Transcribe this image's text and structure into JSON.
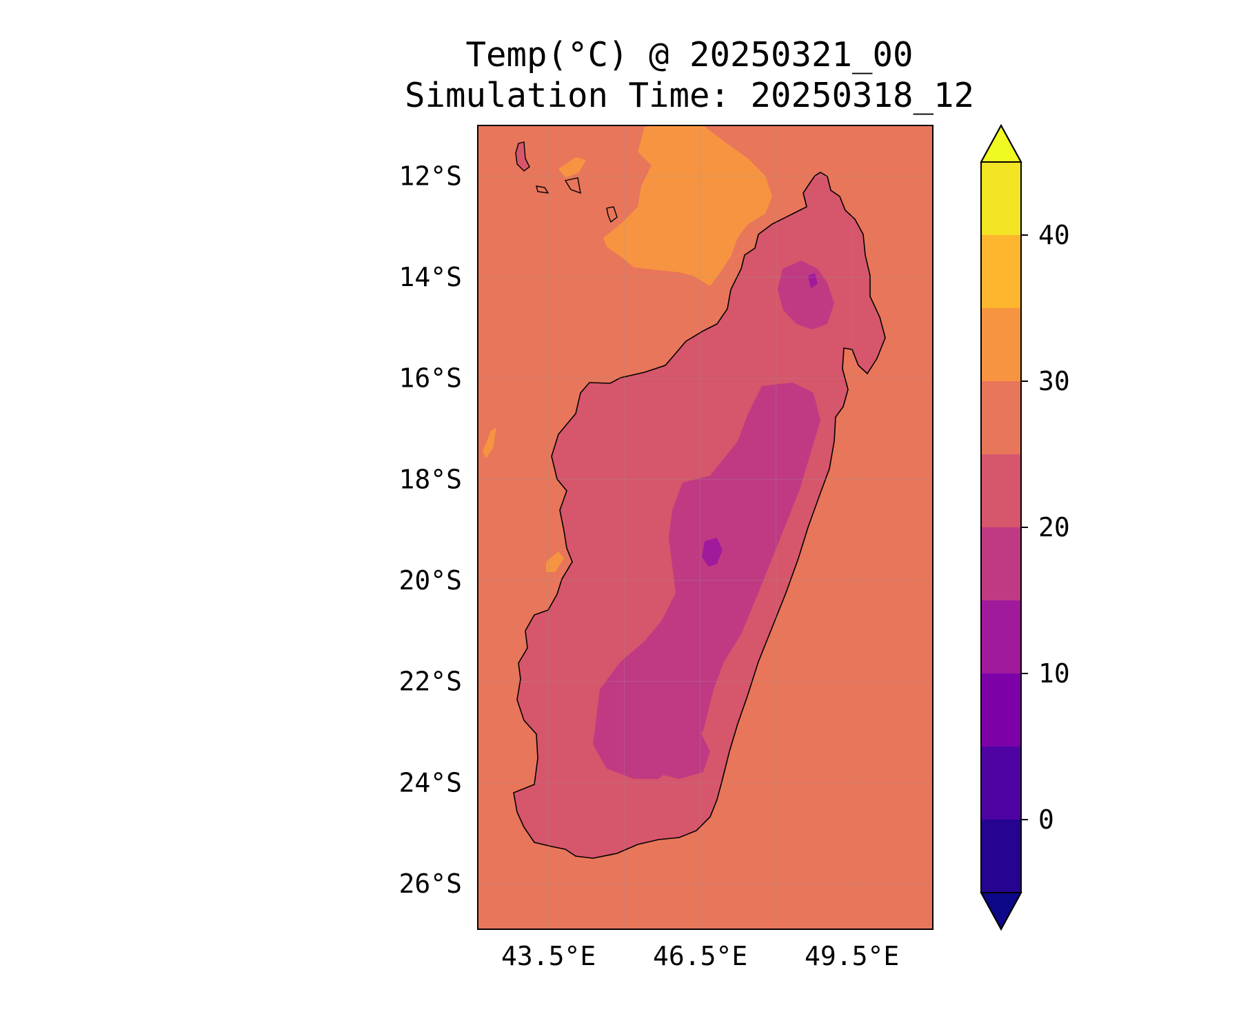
{
  "title": "Temp(°C) @ 20250321_00",
  "subtitle": "Simulation Time: 20250318_12",
  "map": {
    "lon_range": [
      42.1,
      51.1
    ],
    "lat_range": [
      -26.9,
      -11.0
    ],
    "lat_ticks": [
      {
        "value": -12,
        "label": "12°S"
      },
      {
        "value": -14,
        "label": "14°S"
      },
      {
        "value": -16,
        "label": "16°S"
      },
      {
        "value": -18,
        "label": "18°S"
      },
      {
        "value": -20,
        "label": "20°S"
      },
      {
        "value": -22,
        "label": "22°S"
      },
      {
        "value": -24,
        "label": "24°S"
      },
      {
        "value": -26,
        "label": "26°S"
      }
    ],
    "lon_ticks": [
      {
        "value": 43.5,
        "label": "43.5°E"
      },
      {
        "value": 46.5,
        "label": "46.5°E"
      },
      {
        "value": 49.5,
        "label": "49.5°E"
      }
    ],
    "background_level_color": "#e8765a",
    "coastline_color": "#000000"
  },
  "colorbar": {
    "bounds": [
      -5,
      0,
      5,
      10,
      15,
      20,
      25,
      30,
      35,
      40,
      45
    ],
    "colors": [
      "#25048f",
      "#4e03a2",
      "#7c02a8",
      "#a01a9c",
      "#c03a83",
      "#d6566b",
      "#e8765a",
      "#f79441",
      "#fdb62e",
      "#f2e325"
    ],
    "under_color": "#0d0887",
    "over_color": "#f0f921",
    "ticks": [
      {
        "value": 0,
        "label": "0"
      },
      {
        "value": 10,
        "label": "10"
      },
      {
        "value": 20,
        "label": "20"
      },
      {
        "value": 30,
        "label": "30"
      },
      {
        "value": 40,
        "label": "40"
      }
    ]
  }
}
